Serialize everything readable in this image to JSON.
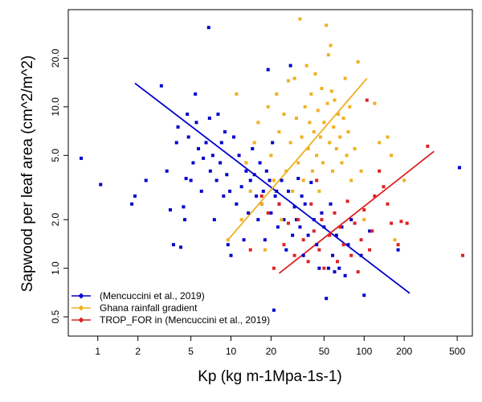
{
  "chart_data": {
    "type": "scatter",
    "xlabel": "Kp (kg m-1Mpa-1s-1)",
    "ylabel": "Sapwood per leaf area (cm^2/m^2)",
    "x_scale": "log",
    "y_scale": "log",
    "xlim": [
      0.6,
      650
    ],
    "ylim": [
      0.38,
      40
    ],
    "x_ticks": [
      {
        "value": 1,
        "label": "1"
      },
      {
        "value": 2,
        "label": "2"
      },
      {
        "value": 5,
        "label": "5"
      },
      {
        "value": 10,
        "label": "10"
      },
      {
        "value": 20,
        "label": "20"
      },
      {
        "value": 50,
        "label": "50"
      },
      {
        "value": 100,
        "label": "100"
      },
      {
        "value": 200,
        "label": "200"
      },
      {
        "value": 500,
        "label": "500"
      }
    ],
    "y_ticks": [
      {
        "value": 0.5,
        "label": "0.5"
      },
      {
        "value": 1.0,
        "label": "1.0"
      },
      {
        "value": 2.0,
        "label": "2.0"
      },
      {
        "value": 5.0,
        "label": "5.0"
      },
      {
        "value": 10.0,
        "label": "10.0"
      },
      {
        "value": 20.0,
        "label": "20.0"
      }
    ],
    "grid": false,
    "legend_position": "bottom-left",
    "series": [
      {
        "name": "(Mencuccini et al., 2019)",
        "color": "#0000cc",
        "points": [
          [
            0.75,
            4.8
          ],
          [
            1.05,
            3.3
          ],
          [
            1.8,
            2.5
          ],
          [
            1.9,
            2.8
          ],
          [
            2.3,
            3.5
          ],
          [
            3.0,
            13.5
          ],
          [
            3.3,
            4.0
          ],
          [
            3.5,
            2.3
          ],
          [
            3.7,
            1.4
          ],
          [
            3.9,
            6.0
          ],
          [
            4.0,
            7.5
          ],
          [
            4.2,
            1.35
          ],
          [
            4.4,
            2.4
          ],
          [
            4.6,
            3.6
          ],
          [
            4.5,
            2.0
          ],
          [
            4.7,
            9.0
          ],
          [
            4.8,
            6.5
          ],
          [
            5.0,
            3.5
          ],
          [
            5.2,
            4.5
          ],
          [
            5.4,
            12.0
          ],
          [
            5.5,
            8.0
          ],
          [
            5.7,
            5.5
          ],
          [
            6.0,
            3.0
          ],
          [
            6.2,
            4.8
          ],
          [
            6.5,
            6.0
          ],
          [
            6.8,
            31.0
          ],
          [
            6.9,
            8.5
          ],
          [
            7.0,
            4.0
          ],
          [
            7.3,
            5.0
          ],
          [
            7.5,
            2.0
          ],
          [
            7.8,
            3.5
          ],
          [
            8.0,
            9.0
          ],
          [
            8.3,
            4.5
          ],
          [
            8.5,
            6.0
          ],
          [
            8.8,
            2.8
          ],
          [
            9.0,
            7.0
          ],
          [
            9.3,
            3.8
          ],
          [
            9.5,
            1.4
          ],
          [
            9.8,
            3.0
          ],
          [
            10.0,
            1.2
          ],
          [
            10.5,
            6.5
          ],
          [
            11.0,
            2.5
          ],
          [
            11.5,
            5.0
          ],
          [
            12.0,
            3.2
          ],
          [
            12.5,
            1.5
          ],
          [
            13.0,
            4.0
          ],
          [
            13.5,
            2.2
          ],
          [
            14.0,
            3.5
          ],
          [
            14.5,
            5.5
          ],
          [
            15.0,
            3.8
          ],
          [
            15.5,
            2.8
          ],
          [
            16.0,
            2.0
          ],
          [
            16.5,
            4.5
          ],
          [
            17.0,
            2.5
          ],
          [
            17.5,
            3.0
          ],
          [
            18.0,
            1.5
          ],
          [
            18.5,
            4.0
          ],
          [
            19.0,
            17.0
          ],
          [
            19.5,
            3.5
          ],
          [
            20.0,
            2.2
          ],
          [
            20.5,
            6.0
          ],
          [
            21.0,
            0.55
          ],
          [
            21.5,
            2.8
          ],
          [
            22.0,
            3.0
          ],
          [
            22.5,
            1.8
          ],
          [
            23.0,
            2.5
          ],
          [
            24.0,
            3.5
          ],
          [
            25.0,
            2.0
          ],
          [
            26.0,
            1.3
          ],
          [
            27.0,
            3.0
          ],
          [
            28.0,
            18.0
          ],
          [
            29.0,
            1.6
          ],
          [
            30.0,
            2.4
          ],
          [
            31.0,
            2.0
          ],
          [
            32.0,
            3.6
          ],
          [
            33.0,
            1.8
          ],
          [
            34.0,
            2.8
          ],
          [
            35.0,
            1.2
          ],
          [
            36.0,
            2.5
          ],
          [
            38.0,
            1.6
          ],
          [
            40.0,
            3.4
          ],
          [
            42.0,
            2.0
          ],
          [
            44.0,
            1.4
          ],
          [
            46.0,
            1.0
          ],
          [
            48.0,
            2.2
          ],
          [
            50.0,
            1.8
          ],
          [
            52.0,
            0.65
          ],
          [
            54.0,
            1.0
          ],
          [
            56.0,
            2.5
          ],
          [
            58.0,
            1.2
          ],
          [
            60.0,
            0.95
          ],
          [
            62.0,
            1.6
          ],
          [
            65.0,
            1.0
          ],
          [
            68.0,
            1.8
          ],
          [
            72.0,
            0.9
          ],
          [
            76.0,
            1.4
          ],
          [
            80.0,
            2.0
          ],
          [
            95.0,
            1.2
          ],
          [
            100.0,
            0.68
          ],
          [
            110.0,
            1.7
          ],
          [
            180.0,
            1.3
          ],
          [
            520.0,
            4.2
          ]
        ]
      },
      {
        "name": "Ghana rainfall gradient",
        "color": "#f0b020",
        "points": [
          [
            9.5,
            1.5
          ],
          [
            11.0,
            12.0
          ],
          [
            12.0,
            2.0
          ],
          [
            13.0,
            4.5
          ],
          [
            14.0,
            3.0
          ],
          [
            15.0,
            6.0
          ],
          [
            16.0,
            8.0
          ],
          [
            17.0,
            2.5
          ],
          [
            18.0,
            1.3
          ],
          [
            19.0,
            10.0
          ],
          [
            20.0,
            5.0
          ],
          [
            21.0,
            3.5
          ],
          [
            22.0,
            12.0
          ],
          [
            23.0,
            7.0
          ],
          [
            24.0,
            2.0
          ],
          [
            25.0,
            9.0
          ],
          [
            26.0,
            4.0
          ],
          [
            27.0,
            14.5
          ],
          [
            28.0,
            6.0
          ],
          [
            29.0,
            3.0
          ],
          [
            30.0,
            15.0
          ],
          [
            31.0,
            8.5
          ],
          [
            32.0,
            4.5
          ],
          [
            33.0,
            35.0
          ],
          [
            34.0,
            6.5
          ],
          [
            35.0,
            3.5
          ],
          [
            36.0,
            10.0
          ],
          [
            37.0,
            18.0
          ],
          [
            38.0,
            5.5
          ],
          [
            39.0,
            8.0
          ],
          [
            40.0,
            12.0
          ],
          [
            41.0,
            4.0
          ],
          [
            42.0,
            7.0
          ],
          [
            43.0,
            16.0
          ],
          [
            44.0,
            5.0
          ],
          [
            45.0,
            9.5
          ],
          [
            46.0,
            3.0
          ],
          [
            47.0,
            6.5
          ],
          [
            48.0,
            13.0
          ],
          [
            49.0,
            4.5
          ],
          [
            50.0,
            8.0
          ],
          [
            52.0,
            32.0
          ],
          [
            53.0,
            10.5
          ],
          [
            54.0,
            21.0
          ],
          [
            55.0,
            6.0
          ],
          [
            56.0,
            24.0
          ],
          [
            57.0,
            12.5
          ],
          [
            58.0,
            4.0
          ],
          [
            59.0,
            7.5
          ],
          [
            60.0,
            11.0
          ],
          [
            62.0,
            5.5
          ],
          [
            64.0,
            9.0
          ],
          [
            66.0,
            6.5
          ],
          [
            68.0,
            4.5
          ],
          [
            70.0,
            8.5
          ],
          [
            72.0,
            15.0
          ],
          [
            74.0,
            5.0
          ],
          [
            76.0,
            7.0
          ],
          [
            78.0,
            10.0
          ],
          [
            80.0,
            3.5
          ],
          [
            85.0,
            5.5
          ],
          [
            90.0,
            19.0
          ],
          [
            95.0,
            4.0
          ],
          [
            100.0,
            2.0
          ],
          [
            120.0,
            10.5
          ],
          [
            130.0,
            6.0
          ],
          [
            150.0,
            6.5
          ],
          [
            160.0,
            5.0
          ],
          [
            170.0,
            1.5
          ],
          [
            200.0,
            3.5
          ]
        ]
      },
      {
        "name": "TROP_FOR in (Mencuccini et al., 2019)",
        "color": "#dd2222",
        "points": [
          [
            14.0,
            1.3
          ],
          [
            17.0,
            2.8
          ],
          [
            19.0,
            2.2
          ],
          [
            21.0,
            1.0
          ],
          [
            23.0,
            2.5
          ],
          [
            25.0,
            1.4
          ],
          [
            27.0,
            1.9
          ],
          [
            30.0,
            1.2
          ],
          [
            32.0,
            2.0
          ],
          [
            35.0,
            1.5
          ],
          [
            38.0,
            1.1
          ],
          [
            40.0,
            2.5
          ],
          [
            42.0,
            1.7
          ],
          [
            44.0,
            3.5
          ],
          [
            46.0,
            1.3
          ],
          [
            48.0,
            2.0
          ],
          [
            50.0,
            1.0
          ],
          [
            55.0,
            1.6
          ],
          [
            60.0,
            2.2
          ],
          [
            63.0,
            1.1
          ],
          [
            66.0,
            1.8
          ],
          [
            70.0,
            1.4
          ],
          [
            75.0,
            2.6
          ],
          [
            80.0,
            1.2
          ],
          [
            85.0,
            1.9
          ],
          [
            90.0,
            0.95
          ],
          [
            95.0,
            1.5
          ],
          [
            100.0,
            2.3
          ],
          [
            105.0,
            11.0
          ],
          [
            110.0,
            1.3
          ],
          [
            115.0,
            1.7
          ],
          [
            120.0,
            2.8
          ],
          [
            130.0,
            4.0
          ],
          [
            140.0,
            3.2
          ],
          [
            150.0,
            2.5
          ],
          [
            160.0,
            1.9
          ],
          [
            180.0,
            1.4
          ],
          [
            190.0,
            1.95
          ],
          [
            210.0,
            1.9
          ],
          [
            300.0,
            5.7
          ],
          [
            550.0,
            1.2
          ]
        ]
      }
    ],
    "fit_lines": [
      {
        "series": "(Mencuccini et al., 2019)",
        "color": "#0000cc",
        "x": [
          1.9,
          220.0
        ],
        "y": [
          14.0,
          0.7
        ]
      },
      {
        "series": "Ghana rainfall gradient",
        "color": "#f0b020",
        "x": [
          9.5,
          105.0
        ],
        "y": [
          1.5,
          15.0
        ]
      },
      {
        "series": "TROP_FOR in (Mencuccini et al., 2019)",
        "color": "#dd2222",
        "x": [
          23.0,
          335.0
        ],
        "y": [
          0.93,
          5.3
        ]
      }
    ]
  }
}
